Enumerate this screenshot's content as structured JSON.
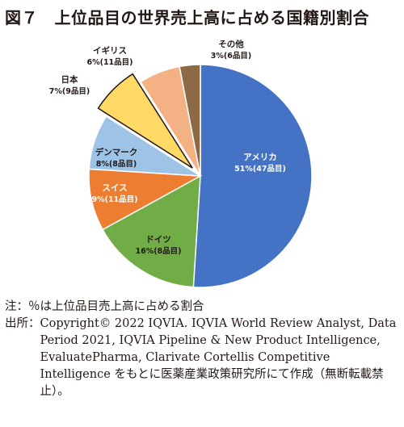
{
  "figure": {
    "title": "図７　上位品目の世界売上高に占める国籍別割合"
  },
  "chart_data": {
    "type": "pie",
    "title": "図７　上位品目の世界売上高に占める国籍別割合",
    "slices": [
      {
        "name": "アメリカ",
        "value": 51,
        "count_label": "51%(47品目)",
        "color": "#4472c4",
        "exploded": false
      },
      {
        "name": "ドイツ",
        "value": 16,
        "count_label": "16%(8品目)",
        "color": "#70ad47",
        "exploded": false
      },
      {
        "name": "スイス",
        "value": 9,
        "count_label": "9%(11品目)",
        "color": "#ed7d31",
        "exploded": false
      },
      {
        "name": "デンマーク",
        "value": 8,
        "count_label": "8%(8品目)",
        "color": "#9dc3e6",
        "exploded": false
      },
      {
        "name": "日本",
        "value": 7,
        "count_label": "7%(9品目)",
        "color": "#ffd966",
        "exploded": true
      },
      {
        "name": "イギリス",
        "value": 6,
        "count_label": "6%(11品目)",
        "color": "#f4b183",
        "exploded": false
      },
      {
        "name": "その他",
        "value": 3,
        "count_label": "3%(6品目)",
        "color": "#8c6a46",
        "exploded": false
      }
    ],
    "legend": "none",
    "start": "12 o'clock, clockwise"
  },
  "notes": {
    "note_label": "注：",
    "note_text": "％は上位品目売上高に占める割合",
    "source_label": "出所：",
    "source_text": "Copyright© 2022 IQVIA. IQVIA World Review Analyst, Data Period 2021, IQVIA Pipeline & New Product Intelligence, EvaluatePharma, Clarivate Cortellis Competitive Intelligence をもとに医薬産業政策研究所にて作成（無断転載禁止）。"
  }
}
